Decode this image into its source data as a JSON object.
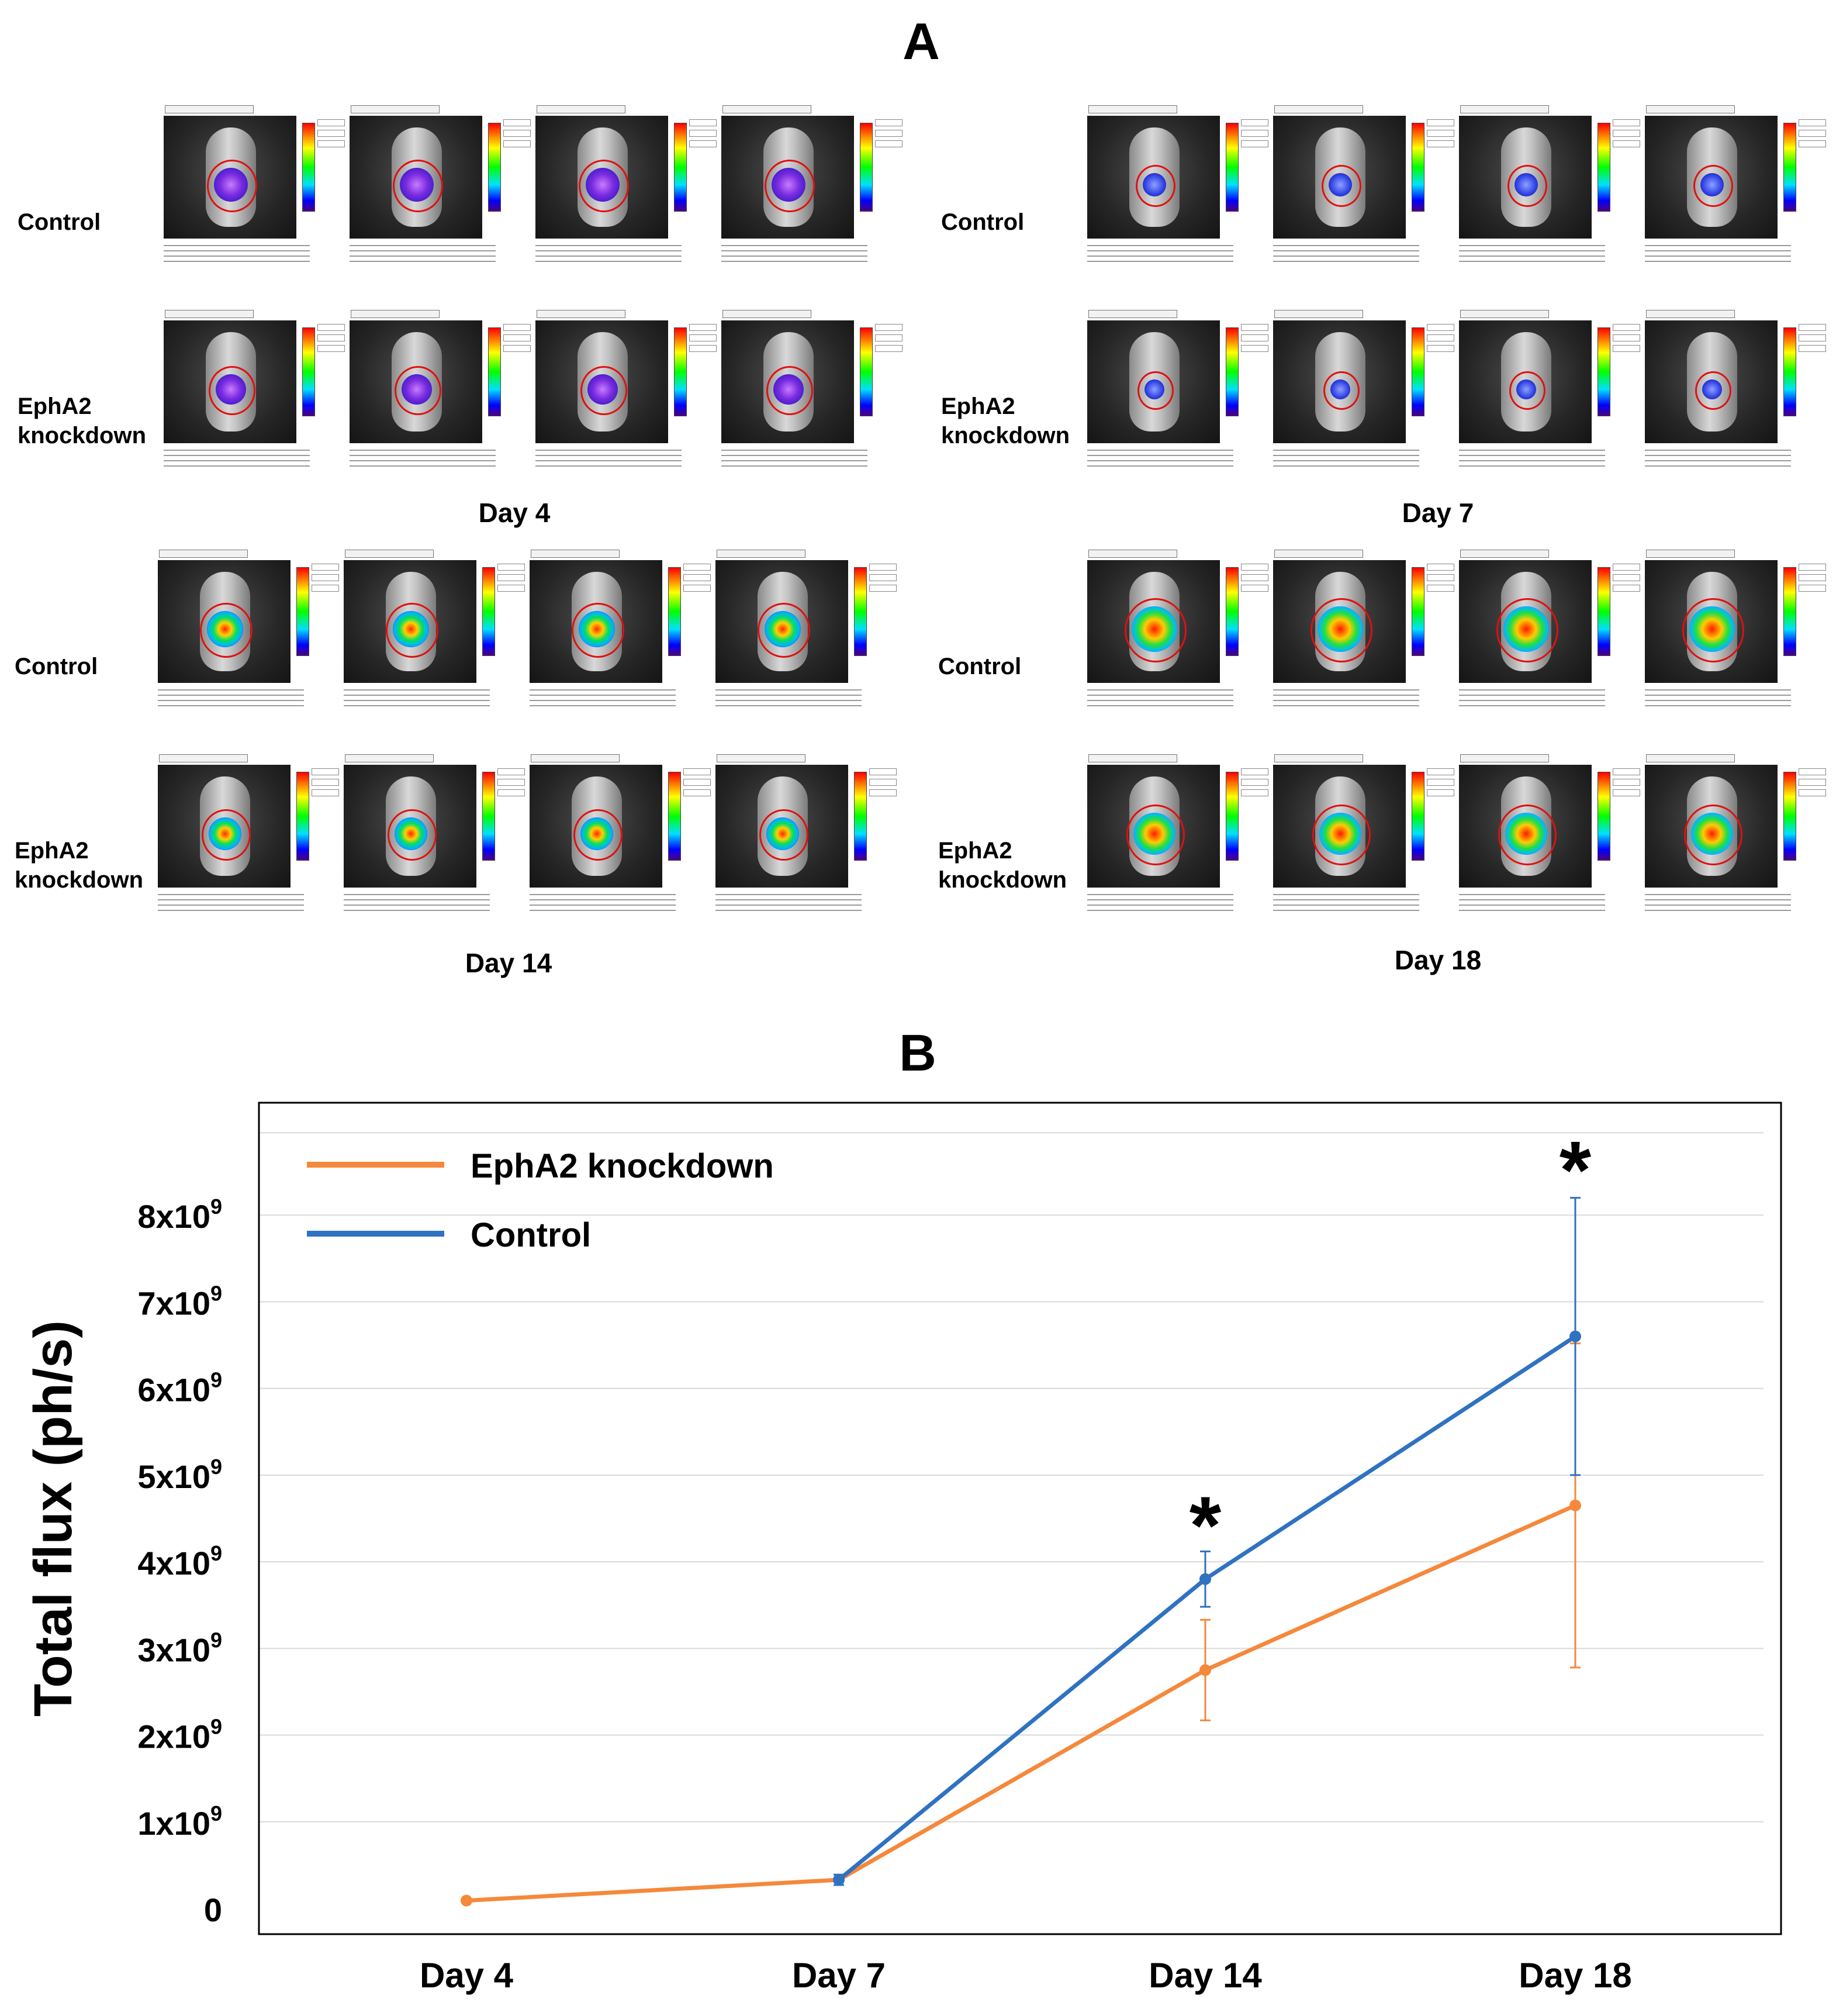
{
  "panel_a": {
    "letter": "A",
    "quadrants": [
      {
        "day": "Day 4",
        "control_label": "Control",
        "knockdown_label": "EphA2\nknockdown"
      },
      {
        "day": "Day 7",
        "control_label": "Control",
        "knockdown_label": "EphA2\nknockdown"
      },
      {
        "day": "Day 14",
        "control_label": "Control",
        "knockdown_label": "EphA2\nknockdown"
      },
      {
        "day": "Day 18",
        "control_label": "Control",
        "knockdown_label": "EphA2\nknockdown"
      }
    ]
  },
  "panel_b": {
    "letter": "B"
  },
  "colors": {
    "knockdown": "#f5883a",
    "control": "#2f72c1",
    "frame": "#000000",
    "grid": "#d9d9d9"
  },
  "chart_data": {
    "type": "line",
    "title": "",
    "categories": [
      "Day 4",
      "Day 7",
      "Day 14",
      "Day 18"
    ],
    "xlabel": "",
    "ylabel": "Total flux (ph/s)",
    "ylim": [
      0,
      9000000000
    ],
    "yticks": [
      {
        "value": 0,
        "base": "0",
        "exp": ""
      },
      {
        "value": 1000000000,
        "base": "1x10",
        "exp": "9"
      },
      {
        "value": 2000000000,
        "base": "2x10",
        "exp": "9"
      },
      {
        "value": 3000000000,
        "base": "3x10",
        "exp": "9"
      },
      {
        "value": 4000000000,
        "base": "4x10",
        "exp": "9"
      },
      {
        "value": 5000000000,
        "base": "5x10",
        "exp": "9"
      },
      {
        "value": 6000000000,
        "base": "6x10",
        "exp": "9"
      },
      {
        "value": 7000000000,
        "base": "7x10",
        "exp": "9"
      },
      {
        "value": 8000000000,
        "base": "8x10",
        "exp": "9"
      }
    ],
    "grid": true,
    "legend_position": "top-left",
    "series": [
      {
        "name": "EphA2 knockdown",
        "color_key": "knockdown",
        "points": [
          {
            "x": "Day 4",
            "y": 90000000,
            "err": 0
          },
          {
            "x": "Day 7",
            "y": 330000000,
            "err": 60000000
          },
          {
            "x": "Day 14",
            "y": 2750000000,
            "err": 580000000
          },
          {
            "x": "Day 18",
            "y": 4650000000,
            "err": 1870000000
          }
        ]
      },
      {
        "name": "Control",
        "color_key": "control",
        "points": [
          {
            "x": "Day 7",
            "y": 330000000,
            "err": 60000000
          },
          {
            "x": "Day 14",
            "y": 3800000000,
            "err": 320000000
          },
          {
            "x": "Day 18",
            "y": 6600000000,
            "err": 1600000000
          }
        ]
      }
    ],
    "annotations": [
      {
        "text": "*",
        "x": "Day 14",
        "y": 4500000000
      },
      {
        "text": "*",
        "x": "Day 18",
        "y": 8600000000
      }
    ]
  }
}
